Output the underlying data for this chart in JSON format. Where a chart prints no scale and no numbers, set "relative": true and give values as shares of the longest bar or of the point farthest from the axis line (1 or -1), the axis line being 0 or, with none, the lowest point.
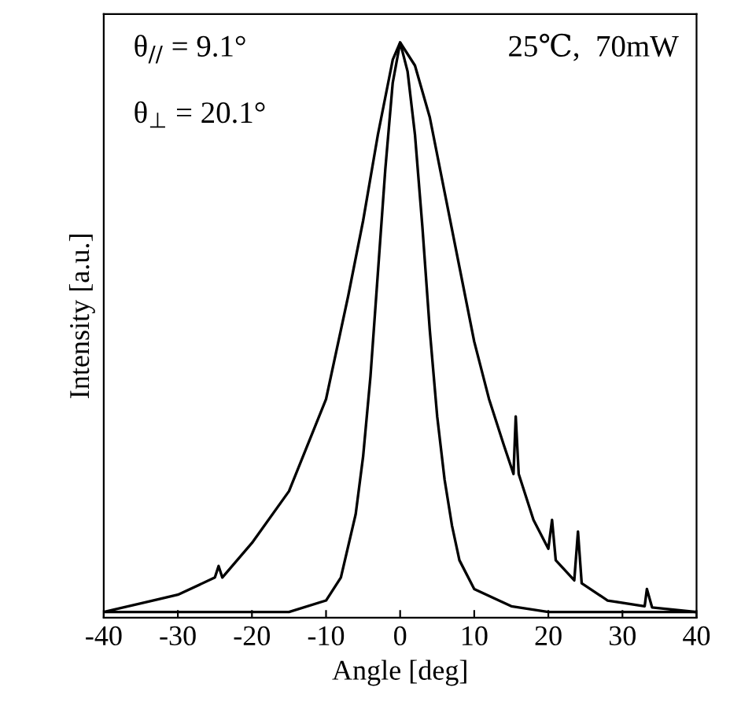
{
  "chart_data": {
    "type": "line",
    "relative": true,
    "xlabel": "Angle [deg]",
    "ylabel": "Intensity [a.u.]",
    "xlim": [
      -40,
      40
    ],
    "xticks": [
      -40,
      -30,
      -20,
      -10,
      0,
      10,
      20,
      30,
      40
    ],
    "grid": false,
    "legend": false,
    "marker": "none",
    "line_style": "solid",
    "annotations": [
      {
        "text": "θ$_{//}$ = 9.1°"
      },
      {
        "text": "θ$_{⊥}$ = 20.1°"
      },
      {
        "text": "25℃,  70mW"
      }
    ],
    "series": [
      {
        "color": "#000000",
        "x": [
          -40,
          -30,
          -25,
          -24.5,
          -24,
          -20,
          -15,
          -10,
          -7,
          -5,
          -3,
          -1,
          0,
          2,
          4,
          6,
          8,
          10,
          12,
          14,
          15.3,
          15.6,
          16,
          18,
          20,
          20.5,
          21,
          23.5,
          24,
          24.5,
          28,
          33,
          33.3,
          34,
          40
        ],
        "values": [
          0.01,
          0.04,
          0.07,
          0.09,
          0.07,
          0.13,
          0.22,
          0.38,
          0.56,
          0.69,
          0.84,
          0.97,
          1.0,
          0.96,
          0.87,
          0.74,
          0.61,
          0.48,
          0.38,
          0.3,
          0.25,
          0.35,
          0.25,
          0.17,
          0.12,
          0.17,
          0.1,
          0.065,
          0.15,
          0.06,
          0.03,
          0.02,
          0.05,
          0.018,
          0.01
        ]
      },
      {
        "color": "#000000",
        "x": [
          -40,
          -15,
          -10,
          -8,
          -6,
          -5,
          -4,
          -3,
          -2,
          -1,
          0,
          1,
          2,
          3,
          4,
          5,
          6,
          7,
          8,
          10,
          15,
          20,
          40
        ],
        "values": [
          0.01,
          0.01,
          0.03,
          0.07,
          0.18,
          0.28,
          0.42,
          0.6,
          0.78,
          0.93,
          1.0,
          0.95,
          0.84,
          0.68,
          0.5,
          0.35,
          0.24,
          0.16,
          0.1,
          0.05,
          0.02,
          0.01,
          0.01
        ]
      }
    ]
  }
}
